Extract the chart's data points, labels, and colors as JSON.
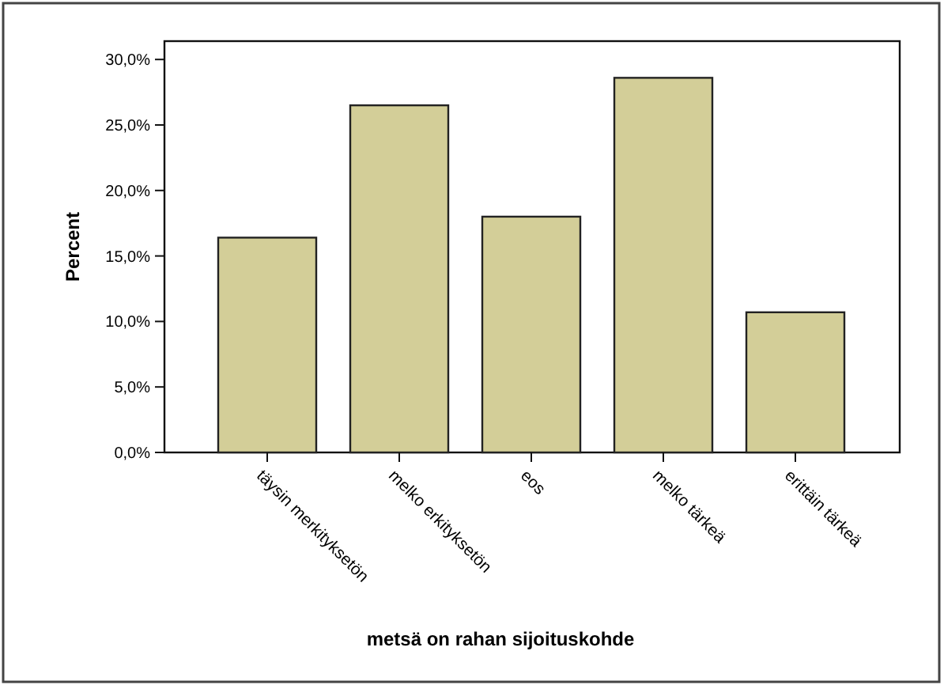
{
  "chart_data": {
    "type": "bar",
    "xlabel": "metsä on rahan sijoituskohde",
    "ylabel": "Percent",
    "categories": [
      "täysin merkityksetön",
      "melko erkityksetön",
      "eos",
      "melko tärkeä",
      "erittäin tärkeä"
    ],
    "values": [
      16.4,
      26.5,
      18.0,
      28.6,
      10.7
    ],
    "color": "#d3ce98",
    "ylim": [
      0,
      31.4
    ],
    "yticks": [
      {
        "value": 0,
        "label": "0,0%"
      },
      {
        "value": 5,
        "label": "5,0%"
      },
      {
        "value": 10,
        "label": "10,0%"
      },
      {
        "value": 15,
        "label": "15,0%"
      },
      {
        "value": 20,
        "label": "20,0%"
      },
      {
        "value": 25,
        "label": "25,0%"
      },
      {
        "value": 30,
        "label": "30,0%"
      }
    ]
  }
}
